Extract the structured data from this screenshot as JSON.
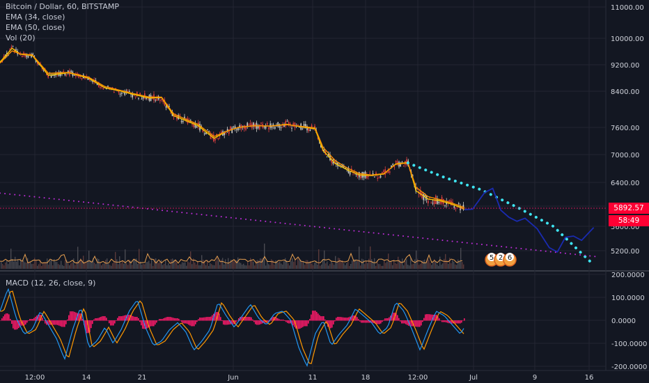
{
  "header": {
    "title": "Bitcoin / Dollar, 60, BITSTAMP",
    "ema1": "EMA (34, close)",
    "ema2": "EMA (50, close)",
    "vol": "Vol (20)"
  },
  "macd_legend": "MACD (12, 26, close, 9)",
  "price_badges": {
    "last": "5892.57",
    "countdown": "58:49",
    "color": "#ff0033"
  },
  "event_badges": [
    "5",
    "2",
    "6"
  ],
  "colors": {
    "bg": "#131722",
    "grid": "#232632",
    "ema34": "#f7c400",
    "ema50": "#f79000",
    "up": "#d0d0c8",
    "down": "#e04040",
    "trend": "#bb2cd4",
    "proj_dotted": "#3ee3f0",
    "proj_line": "#1a2bb0",
    "volume": "#e8a050",
    "macd": "#2196f3",
    "signal": "#ff9800",
    "hist": "#ff1a6a"
  },
  "chart_data": {
    "type": "line",
    "price_axis": {
      "ticks": [
        "11000.00",
        "10000.00",
        "9200.00",
        "8400.00",
        "7600.00",
        "7000.00",
        "6400.00",
        "6000.00",
        "5600.00",
        "5200.00"
      ]
    },
    "macd_axis": {
      "ticks": [
        "200.0000",
        "100.0000",
        "0.0000",
        "-100.0000",
        "-200.0000"
      ]
    },
    "x_ticks": [
      "12:00",
      "14",
      "21",
      "Jun",
      "11",
      "18",
      "12:00",
      "Jul",
      "9",
      "16"
    ],
    "series": [
      {
        "name": "EMA (34, close)",
        "points": [
          [
            0,
            9280
          ],
          [
            3,
            9700
          ],
          [
            5,
            9520
          ],
          [
            8,
            9480
          ],
          [
            12,
            8880
          ],
          [
            17,
            8960
          ],
          [
            22,
            8790
          ],
          [
            26,
            8500
          ],
          [
            30,
            8400
          ],
          [
            33,
            8330
          ],
          [
            37,
            8250
          ],
          [
            40,
            8260
          ],
          [
            43,
            7860
          ],
          [
            46,
            7750
          ],
          [
            49,
            7640
          ],
          [
            53,
            7360
          ],
          [
            56,
            7510
          ],
          [
            59,
            7600
          ],
          [
            63,
            7640
          ],
          [
            67,
            7630
          ],
          [
            71,
            7670
          ],
          [
            74,
            7620
          ],
          [
            78,
            7570
          ],
          [
            80,
            7090
          ],
          [
            83,
            6810
          ],
          [
            86,
            6670
          ],
          [
            89,
            6560
          ],
          [
            92,
            6550
          ],
          [
            95,
            6580
          ],
          [
            98,
            6800
          ],
          [
            101,
            6830
          ],
          [
            103,
            6260
          ],
          [
            106,
            6120
          ],
          [
            109,
            6090
          ],
          [
            112,
            6030
          ],
          [
            115,
            5940
          ]
        ]
      },
      {
        "name": "EMA (50, close)",
        "points": [
          [
            0,
            9250
          ],
          [
            3,
            9620
          ],
          [
            5,
            9530
          ],
          [
            8,
            9500
          ],
          [
            12,
            8940
          ],
          [
            17,
            8970
          ],
          [
            22,
            8820
          ],
          [
            26,
            8540
          ],
          [
            30,
            8420
          ],
          [
            33,
            8350
          ],
          [
            37,
            8270
          ],
          [
            40,
            8270
          ],
          [
            43,
            7900
          ],
          [
            46,
            7780
          ],
          [
            49,
            7670
          ],
          [
            53,
            7400
          ],
          [
            56,
            7510
          ],
          [
            59,
            7600
          ],
          [
            63,
            7640
          ],
          [
            67,
            7630
          ],
          [
            71,
            7660
          ],
          [
            74,
            7630
          ],
          [
            78,
            7590
          ],
          [
            80,
            7160
          ],
          [
            83,
            6870
          ],
          [
            86,
            6710
          ],
          [
            89,
            6590
          ],
          [
            92,
            6560
          ],
          [
            95,
            6590
          ],
          [
            98,
            6790
          ],
          [
            101,
            6820
          ],
          [
            103,
            6320
          ],
          [
            106,
            6160
          ],
          [
            109,
            6110
          ],
          [
            112,
            6050
          ],
          [
            115,
            5970
          ]
        ]
      },
      {
        "name": "Projection (dotted)",
        "points": [
          [
            101,
            6820
          ],
          [
            110,
            6510
          ],
          [
            119,
            6280
          ],
          [
            128,
            5980
          ],
          [
            137,
            5600
          ],
          [
            146,
            5030
          ]
        ]
      },
      {
        "name": "Projection (path)",
        "points": [
          [
            115,
            5930
          ],
          [
            117,
            5940
          ],
          [
            120,
            6230
          ],
          [
            122,
            6300
          ],
          [
            124,
            5920
          ],
          [
            126,
            5780
          ],
          [
            128,
            5700
          ],
          [
            130,
            5760
          ],
          [
            133,
            5560
          ],
          [
            136,
            5250
          ],
          [
            138,
            5180
          ],
          [
            140,
            5420
          ],
          [
            142,
            5440
          ],
          [
            144,
            5370
          ],
          [
            147,
            5580
          ]
        ]
      },
      {
        "name": "Trendline",
        "points": [
          [
            0,
            6220
          ],
          [
            148,
            5100
          ]
        ]
      }
    ],
    "macd": {
      "points": [
        [
          0,
          40
        ],
        [
          2,
          140
        ],
        [
          4,
          10
        ],
        [
          6,
          -60
        ],
        [
          8,
          -40
        ],
        [
          10,
          40
        ],
        [
          12,
          -20
        ],
        [
          14,
          -80
        ],
        [
          16,
          -170
        ],
        [
          18,
          -40
        ],
        [
          20,
          60
        ],
        [
          22,
          -120
        ],
        [
          24,
          -90
        ],
        [
          26,
          -30
        ],
        [
          28,
          -100
        ],
        [
          30,
          -40
        ],
        [
          32,
          40
        ],
        [
          34,
          90
        ],
        [
          36,
          -30
        ],
        [
          38,
          -110
        ],
        [
          40,
          -90
        ],
        [
          42,
          -40
        ],
        [
          44,
          -10
        ],
        [
          46,
          -50
        ],
        [
          48,
          -130
        ],
        [
          50,
          -90
        ],
        [
          52,
          -40
        ],
        [
          54,
          80
        ],
        [
          56,
          20
        ],
        [
          58,
          -30
        ],
        [
          60,
          20
        ],
        [
          62,
          70
        ],
        [
          64,
          10
        ],
        [
          66,
          -20
        ],
        [
          68,
          30
        ],
        [
          70,
          40
        ],
        [
          72,
          0
        ],
        [
          74,
          -120
        ],
        [
          76,
          -200
        ],
        [
          78,
          -60
        ],
        [
          80,
          0
        ],
        [
          82,
          -110
        ],
        [
          84,
          -60
        ],
        [
          86,
          -20
        ],
        [
          88,
          50
        ],
        [
          90,
          20
        ],
        [
          92,
          -10
        ],
        [
          94,
          -60
        ],
        [
          96,
          -30
        ],
        [
          98,
          80
        ],
        [
          100,
          40
        ],
        [
          102,
          -40
        ],
        [
          104,
          -130
        ],
        [
          106,
          -40
        ],
        [
          108,
          40
        ],
        [
          110,
          20
        ],
        [
          112,
          -20
        ],
        [
          114,
          -60
        ],
        [
          115,
          -30
        ]
      ]
    }
  }
}
